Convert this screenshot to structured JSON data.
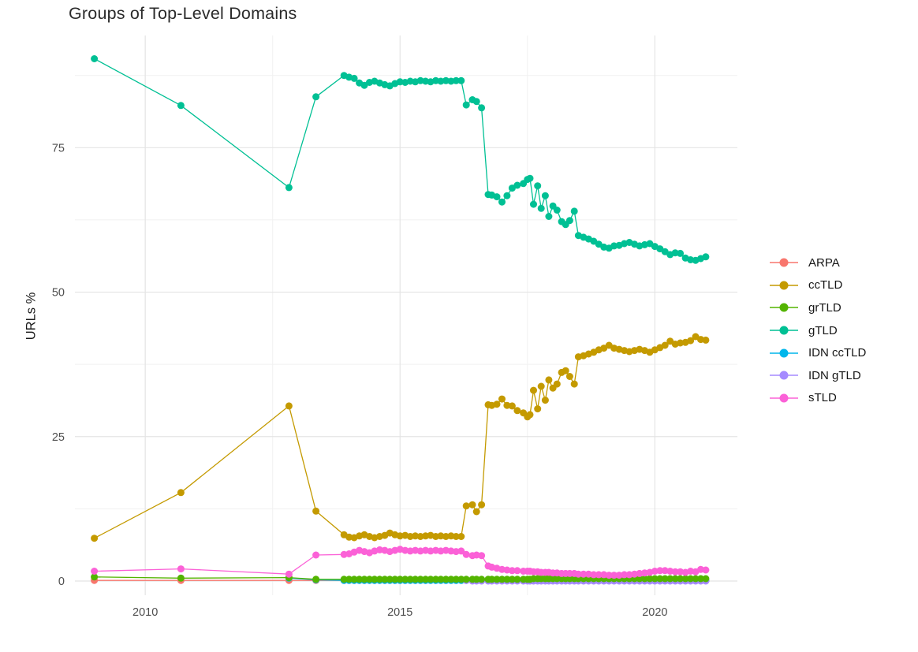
{
  "chart_data": {
    "type": "line",
    "title": "Groups of Top-Level Domains",
    "ylabel": "URLs %",
    "xlabel": "",
    "legend_position": "right",
    "grid": true,
    "background": "#FFFFFF",
    "style": {
      "grid_major": "#E4E4E4",
      "grid_minor": "#F1F1F1",
      "tick_text": "#4E4E4E",
      "title_text": "#2B2B2B",
      "point_radius": 4.5,
      "line_width": 1.3
    },
    "x_axis": {
      "ticks": [
        2010,
        2015,
        2020
      ],
      "tick_labels": [
        "2010",
        "2015",
        "2020"
      ],
      "minor_ticks": [
        2012.5,
        2017.5
      ],
      "range": [
        2008.62,
        2021.62
      ]
    },
    "y_axis": {
      "ticks": [
        0,
        25,
        50,
        75
      ],
      "tick_labels": [
        "0",
        "25",
        "50",
        "75"
      ],
      "minor_ticks": [
        12.5,
        37.5,
        62.5,
        87.5
      ],
      "range": [
        -2.46,
        94.42
      ]
    },
    "x": [
      2009,
      2010.7,
      2012.82,
      2013.35,
      2013.9,
      2014,
      2014.1,
      2014.2,
      2014.3,
      2014.4,
      2014.5,
      2014.6,
      2014.7,
      2014.8,
      2014.9,
      2015,
      2015.1,
      2015.2,
      2015.3,
      2015.4,
      2015.5,
      2015.6,
      2015.7,
      2015.8,
      2015.9,
      2016,
      2016.1,
      2016.2,
      2016.3,
      2016.42,
      2016.5,
      2016.6,
      2016.73,
      2016.8,
      2016.9,
      2017,
      2017.1,
      2017.2,
      2017.3,
      2017.42,
      2017.5,
      2017.55,
      2017.62,
      2017.7,
      2017.77,
      2017.85,
      2017.92,
      2018,
      2018.08,
      2018.17,
      2018.25,
      2018.33,
      2018.42,
      2018.5,
      2018.6,
      2018.7,
      2018.8,
      2018.9,
      2019,
      2019.1,
      2019.2,
      2019.3,
      2019.4,
      2019.5,
      2019.6,
      2019.7,
      2019.8,
      2019.9,
      2020,
      2020.1,
      2020.2,
      2020.3,
      2020.4,
      2020.5,
      2020.6,
      2020.7,
      2020.8,
      2020.9,
      2021
    ],
    "series": [
      {
        "name": "ARPA",
        "color": "#F8766D",
        "values": [
          0.1,
          0.1,
          0.1,
          0.1,
          0.1,
          0.1,
          0.1,
          0.1,
          0.1,
          0.1,
          0.1,
          0.1,
          0.1,
          0.1,
          0.1,
          0.1,
          0.1,
          0.1,
          0.1,
          0.1,
          0.1,
          0.1,
          0.1,
          0.1,
          0.1,
          0.1,
          0.1,
          0.1,
          0.1,
          0.1,
          0.1,
          0.1,
          0.1,
          0.1,
          0.1,
          0.1,
          0.1,
          0.1,
          0.1,
          0.1,
          0.1,
          0.1,
          0.1,
          0.1,
          0.1,
          0.1,
          0.1,
          0.1,
          0.1,
          0.1,
          0.1,
          0.1,
          0.1,
          0.1,
          0.1,
          0.1,
          0.1,
          0.1,
          0.1,
          0.1,
          0.1,
          0.1,
          0.1,
          0.1,
          0.1,
          0.1,
          0.1,
          0.1,
          0.1,
          0.1,
          0.1,
          0.1,
          0.1,
          0.1,
          0.1,
          0.1,
          0.1,
          0.1,
          0.1
        ]
      },
      {
        "name": "ccTLD",
        "color": "#C49A00",
        "values": [
          7.4,
          15.3,
          30.3,
          12.1,
          8.0,
          7.6,
          7.5,
          7.8,
          8.0,
          7.7,
          7.5,
          7.7,
          7.9,
          8.3,
          8.0,
          7.8,
          7.9,
          7.7,
          7.8,
          7.7,
          7.8,
          7.9,
          7.7,
          7.8,
          7.7,
          7.8,
          7.7,
          7.7,
          13.0,
          13.2,
          12.0,
          13.2,
          30.5,
          30.4,
          30.6,
          31.5,
          30.4,
          30.3,
          29.5,
          29.1,
          28.4,
          28.8,
          33.0,
          29.8,
          33.7,
          31.3,
          34.8,
          33.4,
          34.1,
          36.1,
          36.4,
          35.4,
          34.1,
          38.8,
          39.0,
          39.3,
          39.6,
          40.0,
          40.3,
          40.8,
          40.3,
          40.1,
          39.9,
          39.7,
          39.9,
          40.1,
          39.9,
          39.6,
          40.0,
          40.4,
          40.8,
          41.5,
          41.0,
          41.2,
          41.3,
          41.6,
          42.3,
          41.8,
          41.7
        ]
      },
      {
        "name": "grTLD",
        "color": "#53B400",
        "values": [
          0.7,
          0.5,
          0.6,
          0.3,
          0.3,
          0.3,
          0.3,
          0.3,
          0.3,
          0.3,
          0.3,
          0.3,
          0.3,
          0.3,
          0.3,
          0.3,
          0.3,
          0.3,
          0.3,
          0.3,
          0.3,
          0.3,
          0.3,
          0.3,
          0.3,
          0.3,
          0.3,
          0.3,
          0.3,
          0.3,
          0.3,
          0.3,
          0.3,
          0.3,
          0.3,
          0.3,
          0.3,
          0.3,
          0.3,
          0.3,
          0.3,
          0.3,
          0.4,
          0.4,
          0.4,
          0.4,
          0.4,
          0.4,
          0.4,
          0.4,
          0.4,
          0.4,
          0.4,
          0.4,
          0.4,
          0.4,
          0.4,
          0.4,
          0.4,
          0.4,
          0.4,
          0.4,
          0.4,
          0.4,
          0.4,
          0.4,
          0.4,
          0.4,
          0.4,
          0.4,
          0.4,
          0.4,
          0.4,
          0.4,
          0.4,
          0.4,
          0.4,
          0.4,
          0.4
        ]
      },
      {
        "name": "gTLD",
        "color": "#00C094",
        "values": [
          90.4,
          82.3,
          68.1,
          83.8,
          87.5,
          87.2,
          87.0,
          86.2,
          85.8,
          86.3,
          86.5,
          86.2,
          85.9,
          85.7,
          86.1,
          86.4,
          86.3,
          86.5,
          86.4,
          86.6,
          86.5,
          86.4,
          86.6,
          86.5,
          86.6,
          86.5,
          86.6,
          86.6,
          82.4,
          83.3,
          83.0,
          81.9,
          66.9,
          66.8,
          66.5,
          65.6,
          66.7,
          68.0,
          68.5,
          68.8,
          69.5,
          69.7,
          65.2,
          68.4,
          64.5,
          66.7,
          63.1,
          64.9,
          64.2,
          62.2,
          61.7,
          62.4,
          64.0,
          59.8,
          59.5,
          59.2,
          58.8,
          58.3,
          57.8,
          57.6,
          58.0,
          58.1,
          58.4,
          58.6,
          58.3,
          58.0,
          58.2,
          58.4,
          57.9,
          57.5,
          57.0,
          56.5,
          56.8,
          56.7,
          55.9,
          55.6,
          55.5,
          55.8,
          56.1
        ]
      },
      {
        "name": "IDN ccTLD",
        "color": "#00B6EB",
        "values": [
          null,
          null,
          0.5,
          0.2,
          0.1,
          0.1,
          0.1,
          0.1,
          0.1,
          0.1,
          0.1,
          0.1,
          0.1,
          0.1,
          0.1,
          0.1,
          0.1,
          0.1,
          0.1,
          0.1,
          0.1,
          0.1,
          0.1,
          0.1,
          0.1,
          0.1,
          0.1,
          0.1,
          0.1,
          0.1,
          0.1,
          0.1,
          0.1,
          0.1,
          0.1,
          0.1,
          0.1,
          0.1,
          0.1,
          0.1,
          0.1,
          0.1,
          0.1,
          0.1,
          0.1,
          0.1,
          0.1,
          0.1,
          0.1,
          0.1,
          0.1,
          0.1,
          0.1,
          0.1,
          0.1,
          0.1,
          0.1,
          0.1,
          0.1,
          0.1,
          0.1,
          0.1,
          0.1,
          0.1,
          0.1,
          0.1,
          0.1,
          0.1,
          0.1,
          0.1,
          0.1,
          0.1,
          0.1,
          0.1,
          0.1,
          0.1,
          0.1,
          0.1,
          0.1
        ]
      },
      {
        "name": "IDN gTLD",
        "color": "#A58AFF",
        "values": [
          null,
          null,
          null,
          null,
          null,
          null,
          null,
          null,
          null,
          null,
          null,
          null,
          null,
          null,
          null,
          null,
          null,
          null,
          null,
          null,
          null,
          null,
          null,
          null,
          null,
          null,
          null,
          null,
          0.1,
          0,
          0,
          0,
          0,
          0,
          0,
          0,
          0,
          0,
          0,
          0,
          0,
          0,
          0,
          0,
          0,
          0,
          0,
          0,
          0,
          0,
          0,
          0,
          0,
          0,
          0,
          0,
          0,
          0,
          0,
          0,
          0,
          0,
          0,
          0,
          0,
          0,
          0,
          0,
          0,
          0,
          0,
          0,
          0,
          0,
          0,
          0,
          0,
          0,
          0
        ]
      },
      {
        "name": "sTLD",
        "color": "#FB61D7",
        "values": [
          1.7,
          2.1,
          1.2,
          4.5,
          4.6,
          4.7,
          5.0,
          5.3,
          5.1,
          4.9,
          5.2,
          5.4,
          5.3,
          5.1,
          5.3,
          5.5,
          5.3,
          5.2,
          5.3,
          5.2,
          5.3,
          5.2,
          5.3,
          5.2,
          5.3,
          5.2,
          5.1,
          5.2,
          4.6,
          4.4,
          4.5,
          4.4,
          2.6,
          2.4,
          2.2,
          2.0,
          1.9,
          1.8,
          1.8,
          1.7,
          1.7,
          1.7,
          1.6,
          1.6,
          1.5,
          1.5,
          1.5,
          1.4,
          1.4,
          1.3,
          1.3,
          1.3,
          1.3,
          1.2,
          1.2,
          1.2,
          1.1,
          1.1,
          1.1,
          1.0,
          1.0,
          1.0,
          1.1,
          1.1,
          1.2,
          1.3,
          1.4,
          1.5,
          1.7,
          1.8,
          1.8,
          1.7,
          1.6,
          1.6,
          1.5,
          1.7,
          1.6,
          2.0,
          1.9
        ]
      }
    ],
    "draw_order": [
      0,
      4,
      5,
      2,
      1,
      3,
      6
    ]
  }
}
